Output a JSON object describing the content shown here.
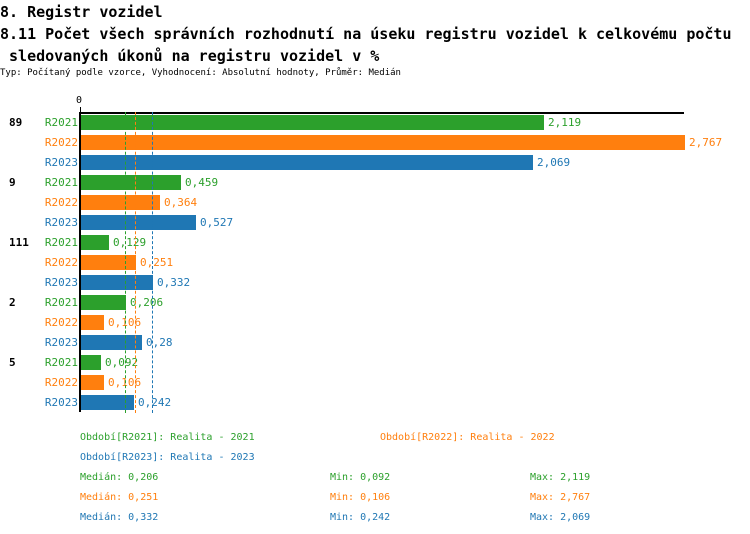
{
  "header": {
    "title": "8. Registr vozidel",
    "subtitle_line1": "8.11 Počet všech správních rozhodnutí na úseku registru vozidel k celkovému počtu",
    "subtitle_line2": " sledovaných úkonů na registru vozidel v %",
    "meta": "Typ: Počítaný podle vzorce, Vyhodnocení: Absolutní hodnoty, Průměr: Medián"
  },
  "colors": {
    "r2021": "#2ca02c",
    "r2022": "#ff7f0e",
    "r2023": "#1f77b4",
    "axis": "#000000"
  },
  "chart_data": {
    "type": "bar",
    "orientation": "horizontal",
    "title": "8.11 Počet všech správních rozhodnutí na úseku registru vozidel k celkovému počtu sledovaných úkonů na registru vozidel v %",
    "axis": {
      "zero_label": "0",
      "xmin": 0,
      "xmax": 2.767,
      "grid": false
    },
    "series_names": [
      "R2021",
      "R2022",
      "R2023"
    ],
    "groups": [
      {
        "label": "89",
        "values": [
          {
            "series": "R2021",
            "value": 2.119,
            "display": "2,119"
          },
          {
            "series": "R2022",
            "value": 2.767,
            "display": "2,767"
          },
          {
            "series": "R2023",
            "value": 2.069,
            "display": "2,069"
          }
        ]
      },
      {
        "label": "9",
        "values": [
          {
            "series": "R2021",
            "value": 0.459,
            "display": "0,459"
          },
          {
            "series": "R2022",
            "value": 0.364,
            "display": "0,364"
          },
          {
            "series": "R2023",
            "value": 0.527,
            "display": "0,527"
          }
        ]
      },
      {
        "label": "111",
        "values": [
          {
            "series": "R2021",
            "value": 0.129,
            "display": "0,129"
          },
          {
            "series": "R2022",
            "value": 0.251,
            "display": "0,251"
          },
          {
            "series": "R2023",
            "value": 0.332,
            "display": "0,332"
          }
        ]
      },
      {
        "label": "2",
        "values": [
          {
            "series": "R2021",
            "value": 0.206,
            "display": "0,206"
          },
          {
            "series": "R2022",
            "value": 0.106,
            "display": "0,106"
          },
          {
            "series": "R2023",
            "value": 0.28,
            "display": "0,28"
          }
        ]
      },
      {
        "label": "5",
        "values": [
          {
            "series": "R2021",
            "value": 0.092,
            "display": "0,092"
          },
          {
            "series": "R2022",
            "value": 0.106,
            "display": "0,106"
          },
          {
            "series": "R2023",
            "value": 0.242,
            "display": "0,242"
          }
        ]
      }
    ],
    "medians": [
      {
        "series": "R2021",
        "value": 0.206
      },
      {
        "series": "R2022",
        "value": 0.251
      },
      {
        "series": "R2023",
        "value": 0.332
      }
    ],
    "legend": [
      {
        "series": "R2021",
        "label": "Období[R2021]: Realita - 2021"
      },
      {
        "series": "R2022",
        "label": "Období[R2022]: Realita - 2022"
      },
      {
        "series": "R2023",
        "label": "Období[R2023]: Realita - 2023"
      }
    ],
    "stats": [
      {
        "series": "R2021",
        "median": "Medián: 0,206",
        "min": "Min: 0,092",
        "max": "Max: 2,119"
      },
      {
        "series": "R2022",
        "median": "Medián: 0,251",
        "min": "Min: 0,106",
        "max": "Max: 2,767"
      },
      {
        "series": "R2023",
        "median": "Medián: 0,332",
        "min": "Min: 0,242",
        "max": "Max: 2,069"
      }
    ]
  }
}
